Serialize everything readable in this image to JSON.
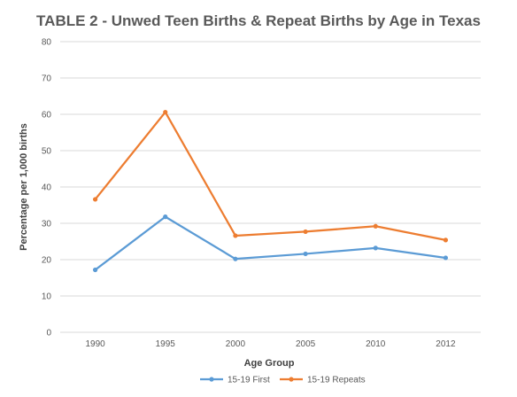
{
  "chart_data": {
    "type": "line",
    "title": "TABLE 2 - Unwed Teen Births & Repeat Births by Age in Texas",
    "xlabel": "Age Group",
    "ylabel": "Percentage per 1,000 births",
    "categories": [
      "1990",
      "1995",
      "2000",
      "2005",
      "2010",
      "2012"
    ],
    "ylim": [
      0,
      80
    ],
    "yticks": [
      "0",
      "10",
      "20",
      "30",
      "40",
      "50",
      "60",
      "70",
      "80"
    ],
    "grid": true,
    "legend_position": "bottom",
    "series": [
      {
        "name": "15-19 First",
        "color": "#5b9bd5",
        "values": [
          17.2,
          31.8,
          20.2,
          21.6,
          23.2,
          20.5
        ]
      },
      {
        "name": "15-19 Repeats",
        "color": "#ed7d31",
        "values": [
          36.6,
          60.6,
          26.6,
          27.7,
          29.2,
          25.4
        ]
      }
    ]
  }
}
